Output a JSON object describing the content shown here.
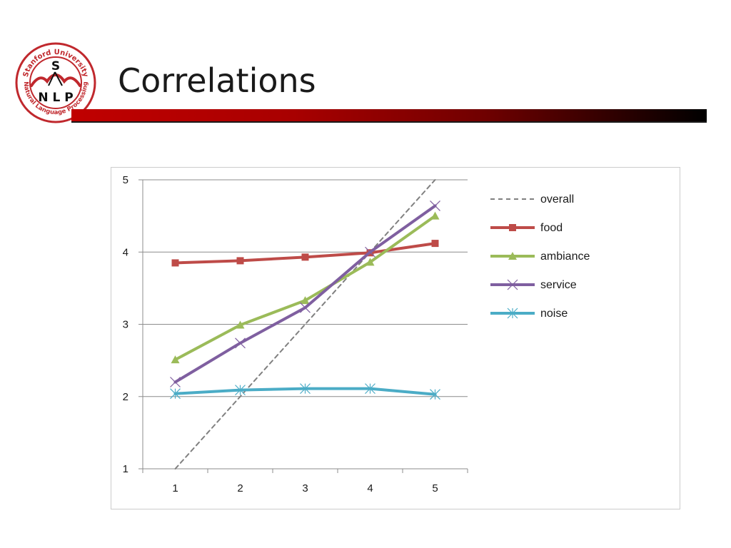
{
  "slide": {
    "title": "Correlations",
    "logo": {
      "text_top": "Stanford University",
      "text_bottom": "Natural Language Processing",
      "letter_s": "S",
      "letters_nlp": "N L P",
      "color": "#c0282d"
    },
    "accent_color": "#c00000"
  },
  "chart_data": {
    "type": "line",
    "title": "",
    "xlabel": "",
    "ylabel": "",
    "categories": [
      1,
      2,
      3,
      4,
      5
    ],
    "xlim": [
      0.5,
      5.5
    ],
    "ylim": [
      1,
      5
    ],
    "yticks": [
      1,
      2,
      3,
      4,
      5
    ],
    "grid": "horizontal",
    "legend_position": "right",
    "series": [
      {
        "name": "overall",
        "values": [
          1.0,
          2.0,
          3.0,
          4.0,
          5.0
        ],
        "color": "#808080",
        "style": "dashed",
        "marker": "none"
      },
      {
        "name": "food",
        "values": [
          3.85,
          3.88,
          3.93,
          3.99,
          4.12
        ],
        "color": "#be4b48",
        "style": "solid",
        "marker": "square"
      },
      {
        "name": "ambiance",
        "values": [
          2.51,
          2.99,
          3.33,
          3.86,
          4.5
        ],
        "color": "#9bbb59",
        "style": "solid",
        "marker": "triangle"
      },
      {
        "name": "service",
        "values": [
          2.2,
          2.74,
          3.23,
          4.0,
          4.64
        ],
        "color": "#7f5fa0",
        "style": "solid",
        "marker": "x"
      },
      {
        "name": "noise",
        "values": [
          2.04,
          2.09,
          2.11,
          2.11,
          2.03
        ],
        "color": "#4bacc6",
        "style": "solid",
        "marker": "star"
      }
    ]
  }
}
